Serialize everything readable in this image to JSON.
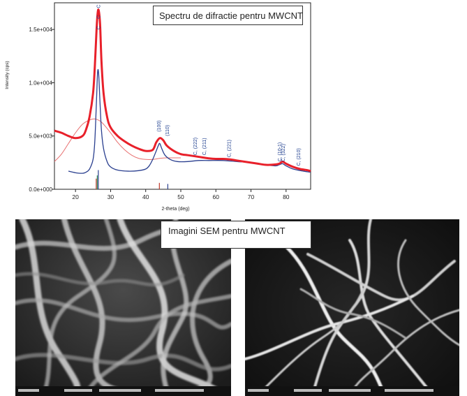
{
  "xrd_caption": "Spectru de difractie pentru MWCNT",
  "sem_caption": "Imagini SEM pentru MWCNT",
  "chart_data": {
    "type": "line",
    "xlabel": "2-theta (deg)",
    "ylabel": "Intensity (cps)",
    "xlim": [
      14,
      87
    ],
    "ylim": [
      0,
      17500
    ],
    "x_ticks": [
      20,
      30,
      40,
      50,
      60,
      70,
      80
    ],
    "y_ticks": [
      0,
      5000,
      10000,
      15000
    ],
    "y_tick_labels": [
      "0.0e+000",
      "5.0e+003",
      "1.0e+004",
      "1.5e+004"
    ],
    "series": [
      {
        "color": "#e8202a",
        "x": [
          14,
          16,
          18,
          20,
          22,
          23,
          24,
          25,
          25.5,
          26,
          26.3,
          26.6,
          27,
          27.4,
          28,
          29,
          30,
          32,
          34,
          36,
          38,
          40,
          42,
          43,
          44,
          45,
          46,
          48,
          50,
          52,
          54,
          56,
          58,
          60,
          62,
          64,
          66,
          68,
          70,
          72,
          74,
          76,
          78,
          79,
          80,
          82,
          84,
          86,
          87
        ],
        "y": [
          5500,
          5300,
          5000,
          4800,
          5000,
          5600,
          6800,
          9000,
          11500,
          15000,
          16500,
          16800,
          15500,
          12000,
          9000,
          6800,
          5800,
          5000,
          4500,
          4100,
          3800,
          3600,
          3700,
          4400,
          4800,
          4600,
          4100,
          3600,
          3300,
          3200,
          3100,
          3000,
          2900,
          2850,
          2850,
          2800,
          2700,
          2600,
          2500,
          2400,
          2300,
          2300,
          2400,
          2600,
          2400,
          2100,
          1900,
          1800,
          1700
        ]
      },
      {
        "color": "#2a3f8f",
        "x": [
          18,
          20,
          22,
          23,
          24,
          25,
          25.5,
          26,
          26.3,
          26.6,
          27,
          27.4,
          28,
          29,
          30,
          32,
          35,
          38,
          40,
          41,
          42,
          43,
          43.6,
          44,
          44.6,
          45.5,
          47,
          49,
          52,
          55,
          58,
          62,
          66,
          70,
          74,
          77,
          78,
          79,
          80,
          82,
          85,
          87
        ],
        "y": [
          1700,
          1550,
          1500,
          1600,
          1900,
          2800,
          4500,
          8500,
          11000,
          10800,
          8000,
          5500,
          3800,
          2600,
          2100,
          1800,
          1700,
          1750,
          1900,
          2200,
          2800,
          3600,
          4100,
          4300,
          3800,
          3200,
          2800,
          2600,
          2600,
          2700,
          2700,
          2700,
          2600,
          2500,
          2300,
          2200,
          2300,
          2400,
          2200,
          1900,
          1700,
          1600
        ]
      },
      {
        "color": "#e87070",
        "x": [
          14,
          16,
          18,
          20,
          22,
          24,
          25.5,
          27,
          28,
          30,
          32,
          34,
          36,
          38,
          40,
          42,
          44,
          46,
          48,
          50
        ],
        "y": [
          2600,
          3300,
          4300,
          5300,
          6100,
          6500,
          6600,
          6400,
          6100,
          5300,
          4400,
          3700,
          3200,
          2900,
          2800,
          2800,
          2900,
          2950,
          2950,
          2950
        ]
      }
    ],
    "peak_labels": [
      {
        "label": "C",
        "x": 26.6,
        "y": 16800
      },
      {
        "label": "C",
        "x": 26.6,
        "y": 15800
      },
      {
        "label": "C",
        "x": 26.6,
        "y": 14800
      },
      {
        "label": "(100)",
        "x": 43.8,
        "y": 5200
      },
      {
        "label": "(110)",
        "x": 46.2,
        "y": 4800
      },
      {
        "label": "C, (222)",
        "x": 54.2,
        "y": 3000
      },
      {
        "label": "C, (211)",
        "x": 56.8,
        "y": 3000
      },
      {
        "label": "C, (221)",
        "x": 63.8,
        "y": 2800
      },
      {
        "label": "C, (10-1)",
        "x": 78.2,
        "y": 2400
      },
      {
        "label": "C, (322)",
        "x": 79.2,
        "y": 2400
      },
      {
        "label": "C, (210)",
        "x": 83.6,
        "y": 2000
      }
    ],
    "reference_lines": [
      {
        "x": 25.9,
        "height": 1000,
        "color": "#c0392b"
      },
      {
        "x": 26.2,
        "height": 1300,
        "color": "#2e8b57"
      },
      {
        "x": 26.5,
        "height": 1800,
        "color": "#2a3f8f"
      },
      {
        "x": 43.9,
        "height": 600,
        "color": "#c0392b"
      },
      {
        "x": 46.3,
        "height": 500,
        "color": "#2a3f8f"
      }
    ]
  }
}
